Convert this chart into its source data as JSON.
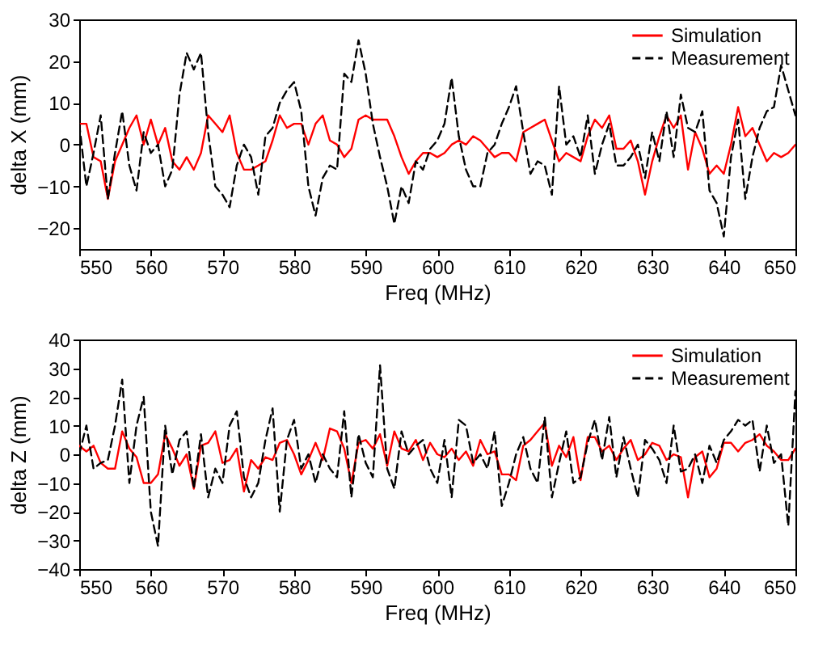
{
  "chart_data": [
    {
      "type": "line",
      "xlabel": "Freq (MHz)",
      "ylabel": "delta X (mm)",
      "xlim": [
        550,
        650
      ],
      "xticks": [
        550,
        560,
        570,
        580,
        590,
        600,
        610,
        620,
        630,
        640,
        650
      ],
      "ylim": [
        -25,
        30
      ],
      "yticks": [
        -20,
        -10,
        0,
        10,
        20,
        30
      ],
      "grid": false,
      "legend": "top right",
      "x": [
        550,
        551,
        552,
        553,
        554,
        555,
        556,
        557,
        558,
        559,
        560,
        561,
        562,
        563,
        564,
        565,
        566,
        567,
        568,
        569,
        570,
        571,
        572,
        573,
        574,
        575,
        576,
        577,
        578,
        579,
        580,
        581,
        582,
        583,
        584,
        585,
        586,
        587,
        588,
        589,
        590,
        591,
        592,
        593,
        594,
        595,
        596,
        597,
        598,
        599,
        600,
        601,
        602,
        603,
        604,
        605,
        606,
        607,
        608,
        609,
        610,
        611,
        612,
        613,
        614,
        615,
        616,
        617,
        618,
        619,
        620,
        621,
        622,
        623,
        624,
        625,
        626,
        627,
        628,
        629,
        630,
        631,
        632,
        633,
        634,
        635,
        636,
        637,
        638,
        639,
        640,
        641,
        642,
        643,
        644,
        645,
        646,
        647,
        648,
        649,
        650
      ],
      "series": [
        {
          "name": "Simulation",
          "color": "#ff0000",
          "line_style": "solid",
          "values": [
            5,
            5,
            -3,
            -4,
            -13,
            -4,
            0,
            4,
            7,
            0,
            6,
            0,
            4,
            -4,
            -6,
            -3,
            -6,
            -2,
            7,
            5,
            3,
            7,
            -2,
            -6,
            -6,
            -5,
            -4,
            1,
            7,
            4,
            5,
            5,
            0,
            5,
            7,
            1,
            0,
            -3,
            -1,
            6,
            7,
            6,
            6,
            6,
            2,
            -3,
            -7,
            -4,
            -2,
            -2,
            -3,
            -2,
            0,
            1,
            0,
            2,
            1,
            -1,
            -3,
            -2,
            -2,
            -4,
            3,
            4,
            5,
            6,
            1,
            -4,
            -2,
            -3,
            -4,
            2,
            6,
            4,
            7,
            -1,
            -1,
            1,
            -4,
            -12,
            -4,
            2,
            7,
            4,
            7,
            -6,
            3,
            -1,
            -7,
            -5,
            -7,
            0,
            9,
            2,
            4,
            0,
            -4,
            -2,
            -3,
            -2,
            0
          ]
        },
        {
          "name": "Measurement",
          "color": "#000000",
          "line_style": "dashed",
          "values": [
            5,
            -10,
            -2,
            7,
            -13,
            -2,
            8,
            -5,
            -11,
            3,
            -2,
            0,
            -10,
            -6,
            12,
            22,
            18,
            22,
            3,
            -10,
            -12,
            -15,
            -5,
            0,
            -3,
            -12,
            2,
            4,
            10,
            13,
            15,
            8,
            -10,
            -17,
            -8,
            -5,
            -6,
            17,
            15,
            25,
            17,
            5,
            -3,
            -10,
            -19,
            -10,
            -14,
            -4,
            -6,
            -1,
            1,
            5,
            16,
            2,
            -6,
            -10,
            -10,
            -2,
            0,
            5,
            9,
            14,
            3,
            -7,
            -4,
            -5,
            -12,
            14,
            0,
            2,
            -3,
            7,
            -7,
            0,
            5,
            -5,
            -5,
            -3,
            0,
            -8,
            3,
            -4,
            8,
            -3,
            12,
            4,
            3,
            8,
            -11,
            -14,
            -22,
            -3,
            6,
            -13,
            -3,
            4,
            8,
            9,
            19,
            13,
            7
          ]
        }
      ]
    },
    {
      "type": "line",
      "xlabel": "Freq (MHz)",
      "ylabel": "delta Z (mm)",
      "xlim": [
        550,
        650
      ],
      "xticks": [
        550,
        560,
        570,
        580,
        590,
        600,
        610,
        620,
        630,
        640,
        650
      ],
      "ylim": [
        -40,
        40
      ],
      "yticks": [
        -40,
        -30,
        -20,
        -10,
        0,
        10,
        20,
        30,
        40
      ],
      "grid": false,
      "legend": "top right",
      "x": [
        550,
        551,
        552,
        553,
        554,
        555,
        556,
        557,
        558,
        559,
        560,
        561,
        562,
        563,
        564,
        565,
        566,
        567,
        568,
        569,
        570,
        571,
        572,
        573,
        574,
        575,
        576,
        577,
        578,
        579,
        580,
        581,
        582,
        583,
        584,
        585,
        586,
        587,
        588,
        589,
        590,
        591,
        592,
        593,
        594,
        595,
        596,
        597,
        598,
        599,
        600,
        601,
        602,
        603,
        604,
        605,
        606,
        607,
        608,
        609,
        610,
        611,
        612,
        613,
        614,
        615,
        616,
        617,
        618,
        619,
        620,
        621,
        622,
        623,
        624,
        625,
        626,
        627,
        628,
        629,
        630,
        631,
        632,
        633,
        634,
        635,
        636,
        637,
        638,
        639,
        640,
        641,
        642,
        643,
        644,
        645,
        646,
        647,
        648,
        649,
        650
      ],
      "series": [
        {
          "name": "Simulation",
          "color": "#ff0000",
          "line_style": "solid",
          "values": [
            3,
            1,
            3,
            -3,
            -5,
            -5,
            8,
            2,
            -1,
            -10,
            -10,
            -7,
            7,
            2,
            -4,
            0,
            -12,
            3,
            4,
            8,
            -3,
            -2,
            2,
            -13,
            -2,
            -5,
            -1,
            -2,
            4,
            5,
            0,
            -7,
            -2,
            4,
            -2,
            9,
            8,
            2,
            -10,
            4,
            5,
            2,
            7,
            -4,
            8,
            2,
            1,
            5,
            -2,
            4,
            0,
            -1,
            2,
            -2,
            1,
            -4,
            5,
            0,
            1,
            -7,
            -7,
            -9,
            3,
            5,
            8,
            11,
            -4,
            3,
            -1,
            6,
            -9,
            6,
            6,
            1,
            3,
            -2,
            2,
            5,
            -2,
            0,
            4,
            3,
            -2,
            0,
            -1,
            -15,
            -1,
            1,
            -8,
            -5,
            4,
            4,
            1,
            4,
            5,
            7,
            3,
            1,
            -2,
            -2,
            2
          ]
        },
        {
          "name": "Measurement",
          "color": "#000000",
          "line_style": "dashed",
          "values": [
            0,
            10,
            -5,
            -3,
            -2,
            10,
            26,
            -10,
            10,
            20,
            -20,
            -32,
            10,
            -7,
            5,
            8,
            -12,
            7,
            -15,
            -5,
            -10,
            10,
            15,
            -8,
            -15,
            -10,
            5,
            16,
            -20,
            5,
            12,
            -5,
            0,
            -10,
            0,
            -5,
            -8,
            15,
            -15,
            7,
            -3,
            -8,
            31,
            -5,
            -12,
            8,
            0,
            3,
            5,
            -5,
            -10,
            5,
            -15,
            12,
            10,
            -3,
            0,
            -5,
            8,
            -18,
            -10,
            0,
            6,
            -5,
            -10,
            13,
            -15,
            -3,
            8,
            -10,
            -8,
            4,
            12,
            -2,
            13,
            -8,
            6,
            -5,
            -15,
            5,
            2,
            -2,
            -10,
            10,
            -6,
            -5,
            0,
            -10,
            3,
            -3,
            5,
            8,
            12,
            10,
            12,
            -6,
            10,
            -3,
            0,
            -25,
            22
          ]
        }
      ]
    }
  ]
}
